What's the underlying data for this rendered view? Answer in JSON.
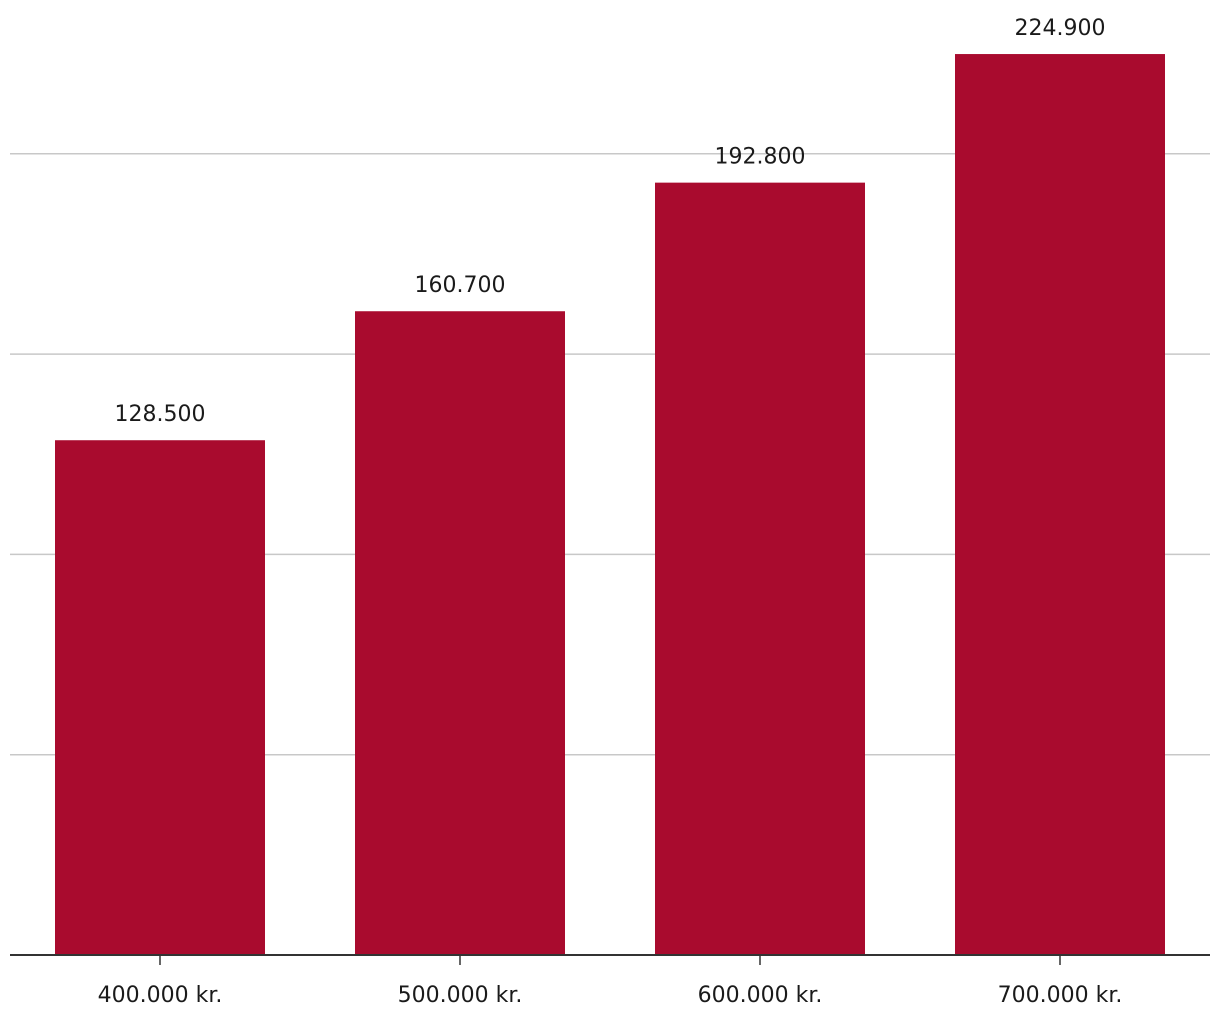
{
  "chart_data": {
    "type": "bar",
    "categories": [
      "400.000 kr.",
      "500.000 kr.",
      "600.000 kr.",
      "700.000 kr."
    ],
    "values": [
      128500,
      160700,
      192800,
      224900
    ],
    "value_labels": [
      "128.500",
      "160.700",
      "192.800",
      "224.900"
    ],
    "title": "",
    "xlabel": "",
    "ylabel": "",
    "ylim": [
      0,
      250000
    ],
    "gridline_values": [
      50000,
      100000,
      150000,
      200000
    ],
    "grid": true,
    "legend": "none",
    "bar_color": "#a90b2e",
    "grid_color": "#c8c8c8",
    "axis_color": "#333333"
  }
}
